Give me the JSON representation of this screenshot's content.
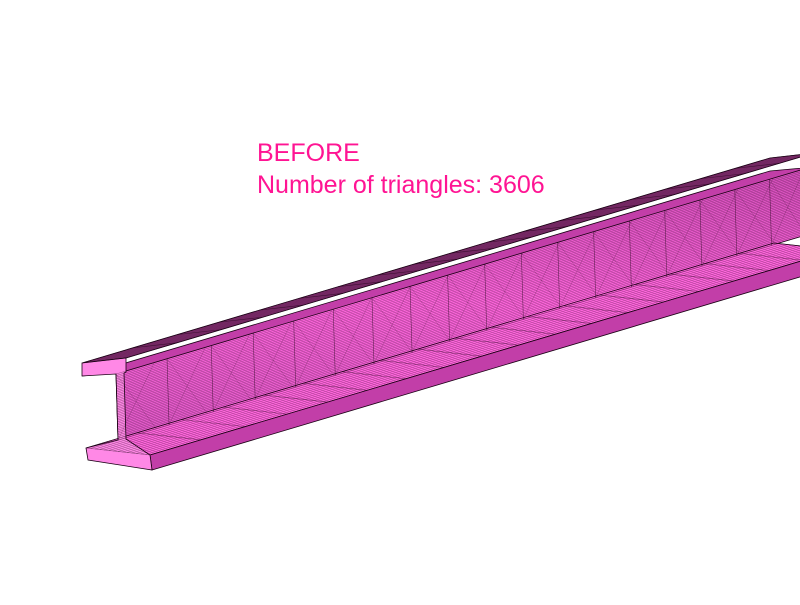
{
  "caption": {
    "title": "BEFORE",
    "triangle_count_text": "Number of triangles: 3606"
  },
  "colors": {
    "background": "#ffffff",
    "caption_text": "#ff1493",
    "mesh_face": "#ff66dd",
    "mesh_face_light": "#ff88e6",
    "mesh_face_shadow": "#c23ea8",
    "mesh_wire": "#1a0014"
  },
  "model": {
    "shape": "i-beam",
    "mesh": "triangle-wireframe"
  }
}
